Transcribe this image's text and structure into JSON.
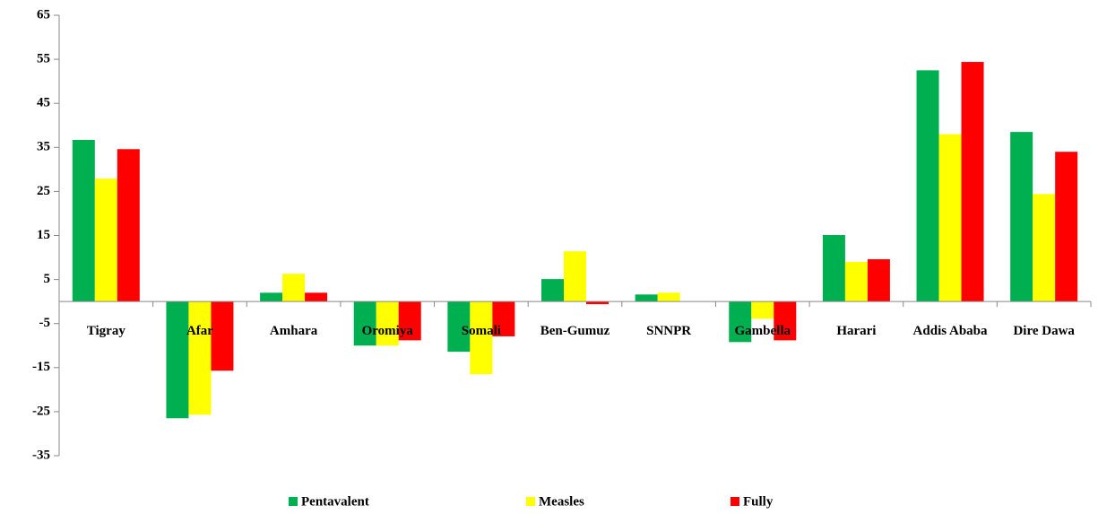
{
  "chart_data": {
    "type": "bar",
    "categories": [
      "Tigray",
      "Afar",
      "Amhara",
      "Oromiya",
      "Somali",
      "Ben-Gumuz",
      "SNNPR",
      "Gambella",
      "Harari",
      "Addis Ababa",
      "Dire Dawa"
    ],
    "series": [
      {
        "name": "Pentavalent",
        "color": "#00b050",
        "values": [
          36.7,
          -26.5,
          2,
          -10,
          -11.4,
          5.1,
          1.6,
          -9.2,
          15.1,
          52.5,
          38.5
        ]
      },
      {
        "name": "Measles",
        "color": "#ffff00",
        "values": [
          27.9,
          -25.7,
          6.3,
          -10,
          -16.5,
          11.4,
          2,
          -3.9,
          9,
          38,
          24.4
        ]
      },
      {
        "name": "Fully",
        "color": "#ff0000",
        "values": [
          34.6,
          -15.7,
          2,
          -8.8,
          -7.9,
          -0.6,
          0,
          -8.8,
          9.6,
          54.4,
          34
        ]
      }
    ],
    "ylim": [
      -35,
      65
    ],
    "yticks": [
      -35,
      -25,
      -15,
      -5,
      5,
      15,
      25,
      35,
      45,
      55,
      65
    ],
    "legend": "bottom"
  }
}
